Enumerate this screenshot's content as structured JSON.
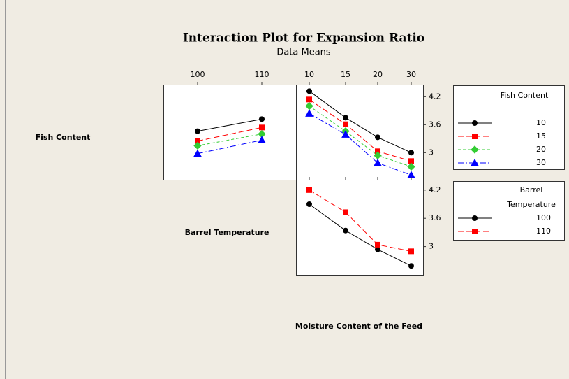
{
  "title": "Interaction Plot for Expansion Ratio",
  "subtitle": "Data Means",
  "factor_labels": [
    "Fish Content",
    "Barrel Temperature",
    "Moisture Content of the Feed"
  ],
  "chart_data": [
    {
      "type": "line",
      "categories": [
        "100",
        "110"
      ],
      "ylim": [
        2.42,
        4.46
      ],
      "series": [
        {
          "color": "#000000",
          "marker": "circle",
          "linestyle": "solid",
          "values": [
            3.46,
            3.72
          ]
        },
        {
          "color": "#ff0000",
          "marker": "square",
          "linestyle": "dashed",
          "values": [
            3.25,
            3.54
          ]
        },
        {
          "color": "#33cc33",
          "marker": "diamond",
          "linestyle": "dotted",
          "values": [
            3.15,
            3.4
          ]
        },
        {
          "color": "#0000ff",
          "marker": "triangle",
          "linestyle": "dashdot",
          "values": [
            2.98,
            3.27
          ]
        }
      ]
    },
    {
      "type": "line",
      "categories": [
        "10",
        "15",
        "20",
        "30"
      ],
      "ylim": [
        2.42,
        4.46
      ],
      "yticks": [
        3.0,
        3.6,
        4.2
      ],
      "legend_title": "Fish Content",
      "series": [
        {
          "name": "10",
          "color": "#000000",
          "marker": "circle",
          "linestyle": "solid",
          "values": [
            4.32,
            3.75,
            3.33,
            3.0
          ]
        },
        {
          "name": "15",
          "color": "#ff0000",
          "marker": "square",
          "linestyle": "dashed",
          "values": [
            4.14,
            3.61,
            3.03,
            2.82
          ]
        },
        {
          "name": "20",
          "color": "#33cc33",
          "marker": "diamond",
          "linestyle": "dotted",
          "values": [
            4.0,
            3.46,
            2.94,
            2.7
          ]
        },
        {
          "name": "30",
          "color": "#0000ff",
          "marker": "triangle",
          "linestyle": "dashdot",
          "values": [
            3.84,
            3.39,
            2.78,
            2.52
          ]
        }
      ]
    },
    {
      "type": "line",
      "categories": [
        null,
        null,
        null,
        null
      ],
      "ylim": [
        2.4,
        4.42
      ],
      "yticks": [
        3.0,
        3.6,
        4.2
      ],
      "legend_title": "Barrel Temperature",
      "series": [
        {
          "name": "100",
          "color": "#000000",
          "marker": "circle",
          "linestyle": "solid",
          "values": [
            3.9,
            3.34,
            2.94,
            2.59
          ]
        },
        {
          "name": "110",
          "color": "#ff0000",
          "marker": "square",
          "linestyle": "dashed",
          "values": [
            4.2,
            3.73,
            3.04,
            2.9
          ]
        }
      ]
    }
  ]
}
